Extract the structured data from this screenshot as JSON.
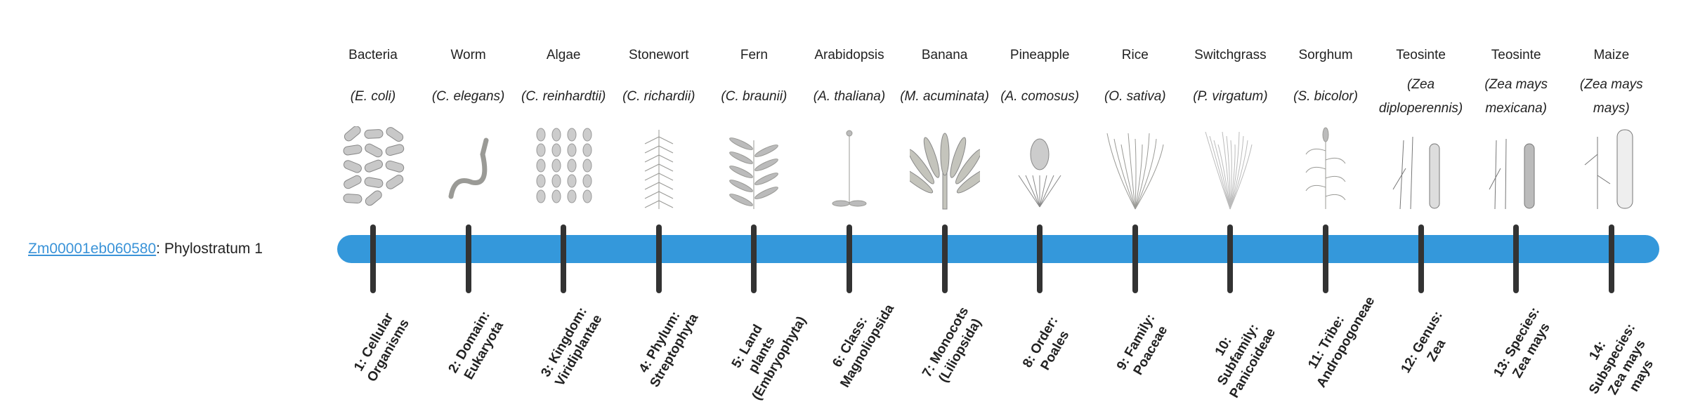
{
  "gene": {
    "id": "Zm00001eb060580",
    "suffix": ": Phylostratum 1"
  },
  "colors": {
    "bar": "#3498db",
    "tick": "#333333",
    "link": "#3a93d8"
  },
  "organisms": [
    {
      "common": "Bacteria",
      "sci": "(E. coli)",
      "icon": "bacteria-illustration"
    },
    {
      "common": "Worm",
      "sci": "(C. elegans)",
      "icon": "worm-illustration"
    },
    {
      "common": "Algae",
      "sci": "(C. reinhardtii)",
      "icon": "algae-illustration"
    },
    {
      "common": "Stonewort",
      "sci": "(C. richardii)",
      "icon": "stonewort-illustration"
    },
    {
      "common": "Fern",
      "sci": "(C. braunii)",
      "icon": "fern-illustration"
    },
    {
      "common": "Arabidopsis",
      "sci": "(A. thaliana)",
      "icon": "arabidopsis-illustration"
    },
    {
      "common": "Banana",
      "sci": "(M. acuminata)",
      "icon": "banana-illustration"
    },
    {
      "common": "Pineapple",
      "sci": "(A. comosus)",
      "icon": "pineapple-illustration"
    },
    {
      "common": "Rice",
      "sci": "(O. sativa)",
      "icon": "rice-illustration"
    },
    {
      "common": "Switchgrass",
      "sci": "(P. virgatum)",
      "icon": "switchgrass-illustration"
    },
    {
      "common": "Sorghum",
      "sci": "(S. bicolor)",
      "icon": "sorghum-illustration"
    },
    {
      "common": "Teosinte",
      "sci": "(Zea diploperennis)",
      "icon": "teosinte-illustration"
    },
    {
      "common": "Teosinte",
      "sci": "(Zea mays mexicana)",
      "icon": "teosinte-illustration"
    },
    {
      "common": "Maize",
      "sci": "(Zea mays mays)",
      "icon": "maize-illustration"
    }
  ],
  "strata": [
    "1: Cellular Organisms",
    "2: Domain: Eukaryota",
    "3: Kingdom: Viridiplantae",
    "4: Phylum: Streptophyta",
    "5: Land plants (Embryophyta)",
    "6: Class: Magnoliopsida",
    "7: Monocots (Liliopsida)",
    "8: Order: Poales",
    "9: Family: Poaceae",
    "10: Subfamily: Panicoideae",
    "11: Tribe: Andropogoneae",
    "12: Genus: Zea",
    "13: Species: Zea mays",
    "14: Subspecies: Zea mays mays"
  ]
}
